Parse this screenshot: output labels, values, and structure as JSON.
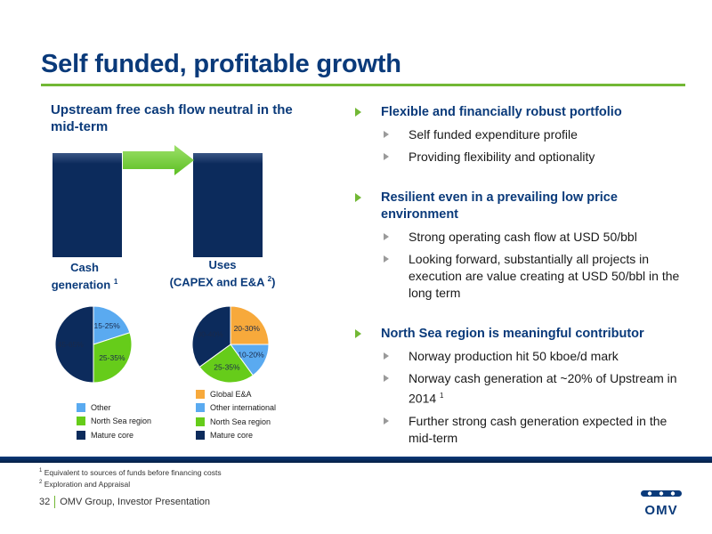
{
  "slide": {
    "title": "Self funded, profitable growth",
    "left_heading": "Upstream free cash flow neutral in the mid-term",
    "col_left_label": "Cash generation",
    "col_left_sup": "1",
    "col_right_label_line1": "Uses",
    "col_right_label_line2": "(CAPEX and E&A ",
    "col_right_sup": "2",
    "col_right_close": ")"
  },
  "pie_left": {
    "slices": [
      {
        "label": "15-25%",
        "value": 20,
        "color": "#5aaaf0"
      },
      {
        "label": "25-35%",
        "value": 30,
        "color": "#66cc1a"
      },
      {
        "label": "45-65%",
        "value": 50,
        "color": "#0c2b5c"
      }
    ],
    "legend": [
      {
        "label": "Other",
        "color": "#5aaaf0"
      },
      {
        "label": "North Sea region",
        "color": "#66cc1a"
      },
      {
        "label": "Mature core",
        "color": "#0c2b5c"
      }
    ]
  },
  "pie_right": {
    "slices": [
      {
        "label": "20-30%",
        "value": 25,
        "color": "#f7a93b"
      },
      {
        "label": "10-20%",
        "value": 15,
        "color": "#5aaaf0"
      },
      {
        "label": "25-35%",
        "value": 25,
        "color": "#66cc1a"
      },
      {
        "label": "30-40%",
        "value": 35,
        "color": "#0c2b5c"
      }
    ],
    "legend": [
      {
        "label": "Global E&A",
        "color": "#f7a93b"
      },
      {
        "label": "Other international",
        "color": "#5aaaf0"
      },
      {
        "label": "North Sea region",
        "color": "#66cc1a"
      },
      {
        "label": "Mature core",
        "color": "#0c2b5c"
      }
    ]
  },
  "bullets": [
    {
      "heading": "Flexible and financially robust portfolio",
      "subs": [
        {
          "text": "Self funded expenditure profile",
          "sup": ""
        },
        {
          "text": "Providing flexibility and optionality",
          "sup": ""
        }
      ]
    },
    {
      "heading": "Resilient even in a prevailing low price environment",
      "subs": [
        {
          "text": "Strong operating cash flow at USD 50/bbl",
          "sup": ""
        },
        {
          "text": "Looking forward, substantially all projects in execution are value creating at USD 50/bbl in the long term",
          "sup": ""
        }
      ]
    },
    {
      "heading": "North Sea region is meaningful contributor",
      "subs": [
        {
          "text": "Norway production hit 50 kboe/d mark",
          "sup": ""
        },
        {
          "text": "Norway cash generation at ~20% of Upstream in 2014",
          "sup": "1"
        },
        {
          "text": "Further strong cash generation expected in the mid-term",
          "sup": ""
        }
      ]
    }
  ],
  "footnotes": [
    {
      "num": "1",
      "text": "Equivalent to sources of funds before financing costs"
    },
    {
      "num": "2",
      "text": "Exploration and Appraisal"
    }
  ],
  "footer": {
    "page_number": "32",
    "text": "OMV Group, Investor Presentation"
  },
  "logo": {
    "text": "OMV"
  }
}
